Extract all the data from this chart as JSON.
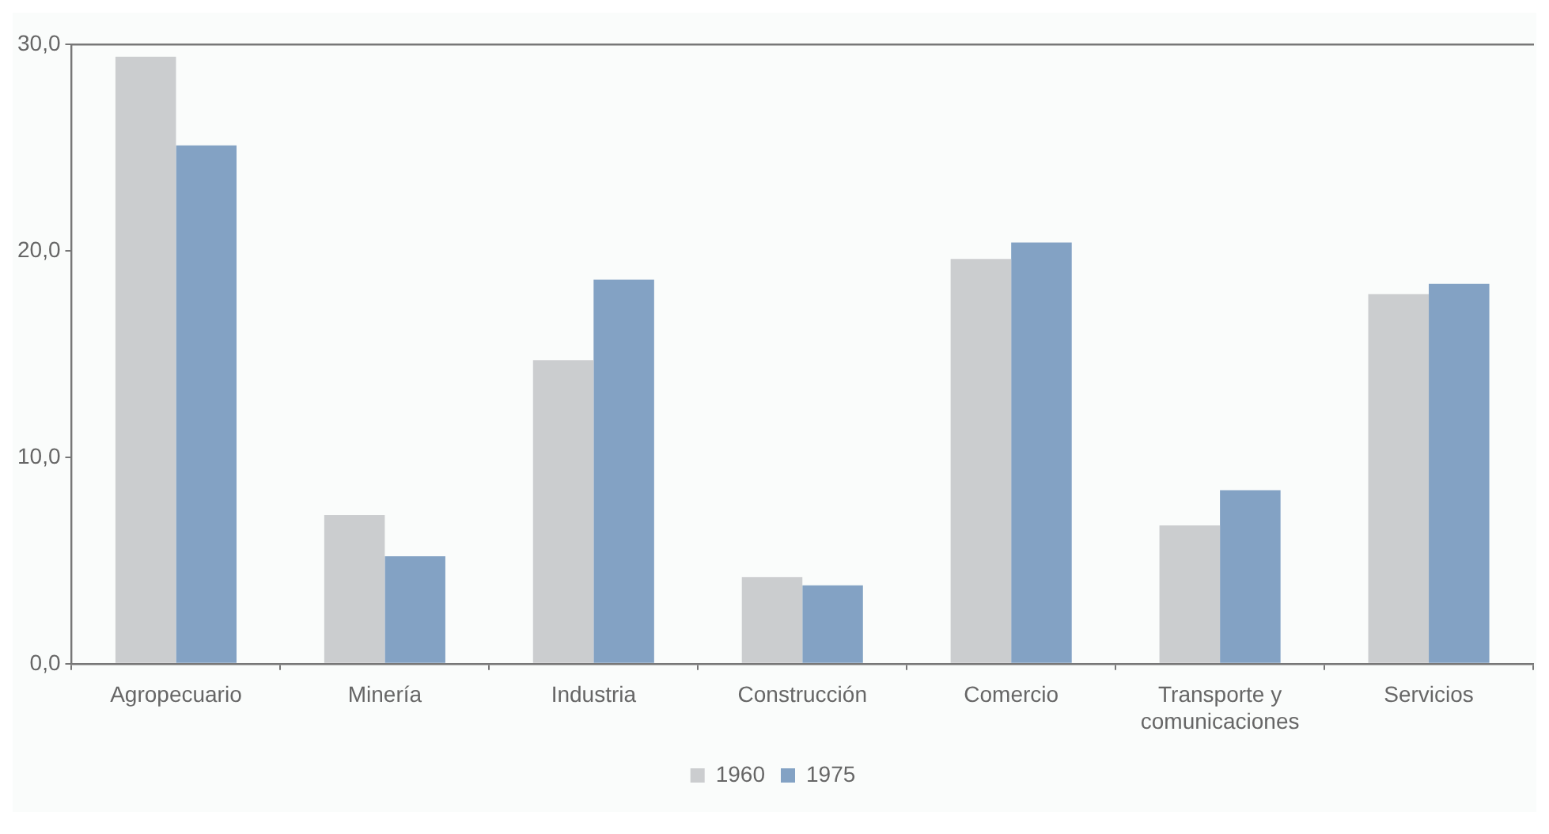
{
  "chart_data": {
    "type": "bar",
    "categories": [
      "Agropecuario",
      "Minería",
      "Industria",
      "Construcción",
      "Comercio",
      "Transporte y comunicaciones",
      "Servicios"
    ],
    "series": [
      {
        "name": "1960",
        "color": "#cbcdcf",
        "values": [
          29.4,
          7.2,
          14.7,
          4.2,
          19.6,
          6.7,
          17.9
        ]
      },
      {
        "name": "1975",
        "color": "#83a2c4",
        "values": [
          25.1,
          5.2,
          18.6,
          3.8,
          20.4,
          8.4,
          18.4
        ]
      }
    ],
    "ylim": [
      0,
      30
    ],
    "yticks": [
      {
        "value": 0,
        "label": "0,0"
      },
      {
        "value": 10,
        "label": "10,0"
      },
      {
        "value": 20,
        "label": "20,0"
      },
      {
        "value": 30,
        "label": "30,0"
      }
    ],
    "grid": false,
    "legend": "bottom"
  }
}
